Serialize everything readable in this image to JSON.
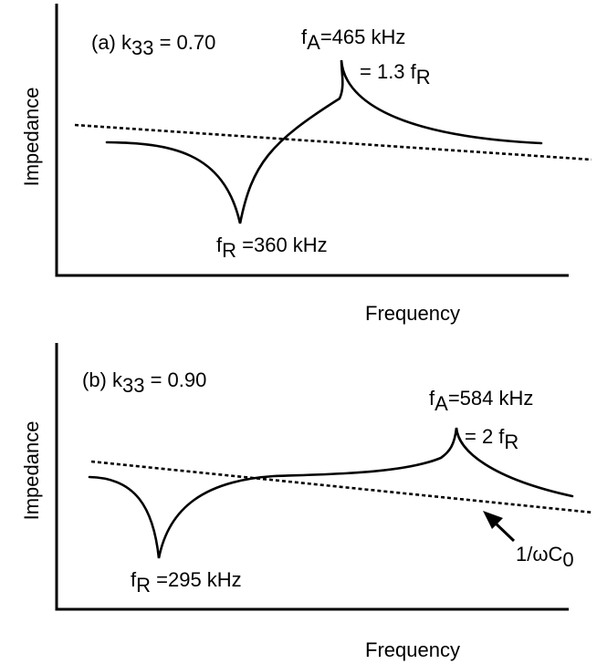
{
  "chart_data": [
    {
      "type": "line",
      "panel": "(a)",
      "k_label": "(a) k",
      "k_sub": "33",
      "k_value": " = 0.70",
      "ylabel": "Impedance",
      "xlabel": "Frequency",
      "fA_main": "f",
      "fA_sub": "A",
      "fA_value": "=465 kHz",
      "ratio_prefix": "= 1.3  f",
      "ratio_sub": "R",
      "fR_main": "f",
      "fR_sub": "R",
      "fR_value": " =360 kHz",
      "annotations": [
        "fA=465 kHz",
        "= 1.3 fR",
        "fR =360 kHz"
      ],
      "values": {
        "k33": 0.7,
        "fR_kHz": 360,
        "fA_kHz": 465,
        "fA_over_fR": 1.3
      }
    },
    {
      "type": "line",
      "panel": "(b)",
      "k_label": "(b) k",
      "k_sub": "33",
      "k_value": " = 0.90",
      "ylabel": "Impedance",
      "xlabel": "Frequency",
      "fA_main": "f",
      "fA_sub": "A",
      "fA_value": "=584 kHz",
      "ratio_prefix": "= 2  f",
      "ratio_sub": "R",
      "fR_main": "f",
      "fR_sub": "R",
      "fR_value": " =295 kHz",
      "capacitance_label_prefix": "1/ωC",
      "capacitance_label_sub": "0",
      "annotations": [
        "fA=584 kHz",
        "= 2 fR",
        "fR =295 kHz",
        "1/ωC0"
      ],
      "values": {
        "k33": 0.9,
        "fR_kHz": 295,
        "fA_kHz": 584,
        "fA_over_fR": 2
      }
    }
  ]
}
